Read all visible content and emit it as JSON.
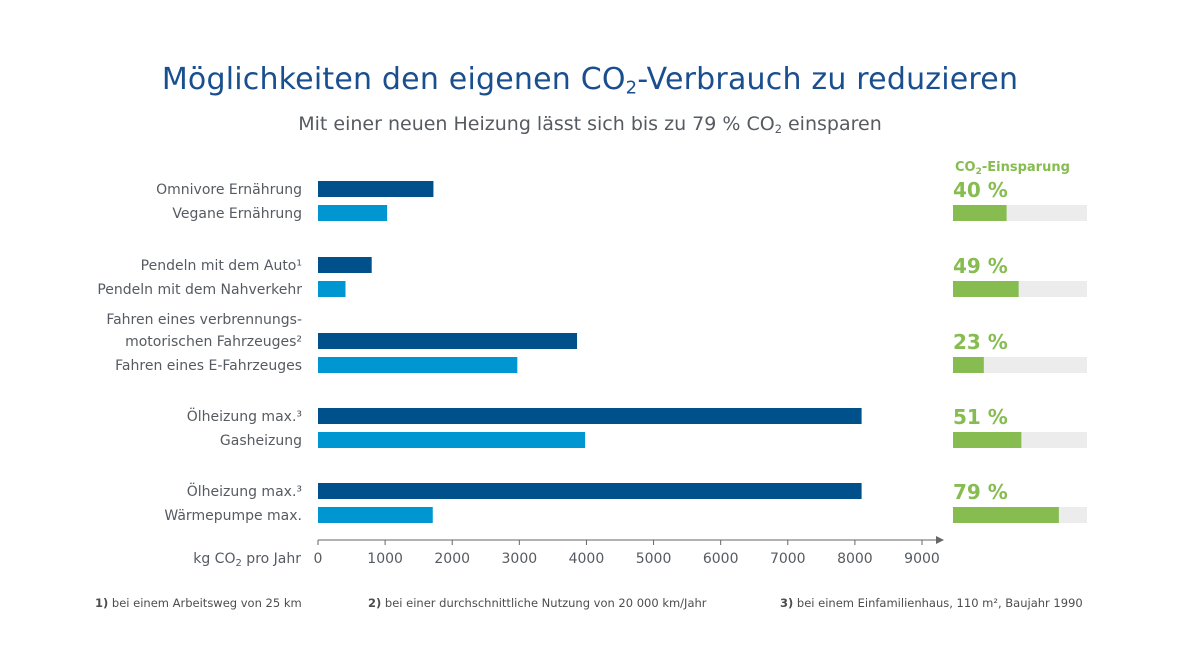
{
  "header": {
    "title_pre": "Möglichkeiten den eigenen CO",
    "title_sub": "2",
    "title_post": "-Verbrauch zu reduzieren",
    "subtitle_pre": "Mit einer neuen Heizung lässt sich bis zu 79 % CO",
    "subtitle_sub": "2",
    "subtitle_post": " einsparen"
  },
  "savings_header": {
    "pre": "CO",
    "sub": "2",
    "post": "-Einsparung"
  },
  "colors": {
    "dark_bar": "#00508c",
    "light_bar": "#0096d2",
    "savings_green": "#86bc50",
    "savings_track": "#ececec",
    "axis": "#666666"
  },
  "chart_data": {
    "type": "bar",
    "orientation": "horizontal",
    "xlabel_pre": "kg CO",
    "xlabel_sub": "2",
    "xlabel_post": " pro Jahr",
    "xlim": [
      0,
      9000
    ],
    "xticks": [
      "0",
      "1000",
      "2000",
      "3000",
      "4000",
      "5000",
      "6000",
      "7000",
      "8000",
      "9000"
    ],
    "groups": [
      {
        "bars": [
          {
            "label": [
              "Omnivore Ernährung"
            ],
            "value": 1720,
            "tone": "dark"
          },
          {
            "label": [
              "Vegane Ernährung"
            ],
            "value": 1030,
            "tone": "light"
          }
        ],
        "saving_label": "40 %",
        "saving_pct": 40
      },
      {
        "bars": [
          {
            "label": [
              "Pendeln mit dem Auto¹"
            ],
            "value": 800,
            "tone": "dark"
          },
          {
            "label": [
              "Pendeln mit dem Nahverkehr"
            ],
            "value": 410,
            "tone": "light"
          }
        ],
        "saving_label": "49 %",
        "saving_pct": 49
      },
      {
        "bars": [
          {
            "label": [
              "Fahren eines verbrennungs-",
              "motorischen Fahrzeuges²"
            ],
            "value": 3860,
            "tone": "dark"
          },
          {
            "label": [
              "Fahren eines E-Fahrzeuges"
            ],
            "value": 2970,
            "tone": "light"
          }
        ],
        "saving_label": "23 %",
        "saving_pct": 23
      },
      {
        "bars": [
          {
            "label": [
              "Ölheizung max.³"
            ],
            "value": 8100,
            "tone": "dark"
          },
          {
            "label": [
              "Gasheizung"
            ],
            "value": 3980,
            "tone": "light"
          }
        ],
        "saving_label": "51 %",
        "saving_pct": 51
      },
      {
        "bars": [
          {
            "label": [
              "Ölheizung max.³"
            ],
            "value": 8100,
            "tone": "dark"
          },
          {
            "label": [
              "Wärmepumpe max."
            ],
            "value": 1710,
            "tone": "light"
          }
        ],
        "saving_label": "79 %",
        "saving_pct": 79
      }
    ]
  },
  "footnotes": [
    {
      "num": "1)",
      "text": " bei einem Arbeitsweg von 25 km"
    },
    {
      "num": "2)",
      "text": " bei einer durchschnittliche Nutzung von 20 000 km/Jahr"
    },
    {
      "num": "3)",
      "text": " bei einem Einfamilienhaus, 110 m², Baujahr 1990"
    }
  ]
}
